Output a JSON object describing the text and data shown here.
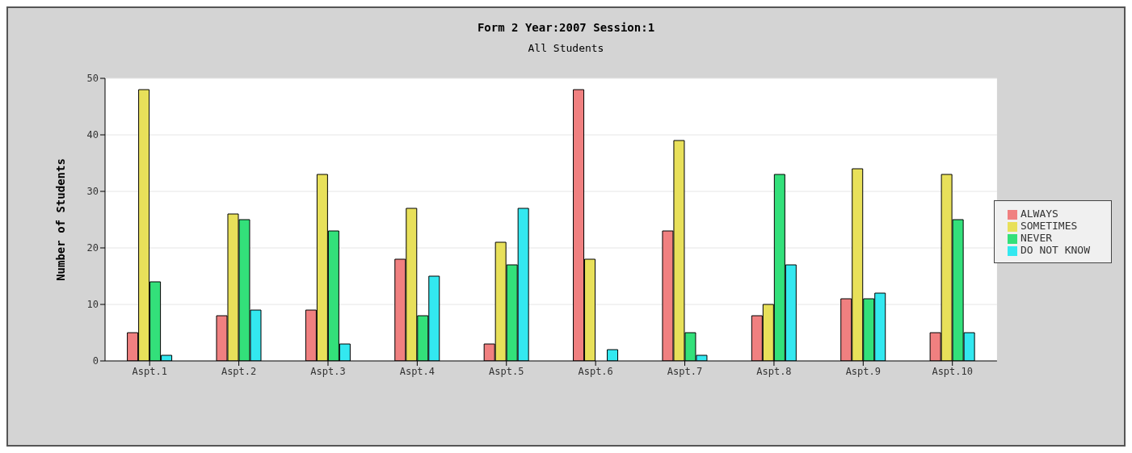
{
  "chart_data": {
    "type": "bar",
    "title": "Form 2 Year:2007 Session:1",
    "subtitle": "All Students",
    "ylabel": "Number of Students",
    "categories": [
      "Aspt.1",
      "Aspt.2",
      "Aspt.3",
      "Aspt.4",
      "Aspt.5",
      "Aspt.6",
      "Aspt.7",
      "Aspt.8",
      "Aspt.9",
      "Aspt.10"
    ],
    "series": [
      {
        "name": "ALWAYS",
        "color": "#f08080",
        "values": [
          5,
          8,
          9,
          18,
          3,
          48,
          23,
          8,
          11,
          5
        ]
      },
      {
        "name": "SOMETIMES",
        "color": "#e8e05a",
        "values": [
          48,
          26,
          33,
          27,
          21,
          18,
          39,
          10,
          34,
          33
        ]
      },
      {
        "name": "NEVER",
        "color": "#33e07a",
        "values": [
          14,
          25,
          23,
          8,
          17,
          0,
          5,
          33,
          11,
          25
        ]
      },
      {
        "name": "DO NOT KNOW",
        "color": "#33e8f0",
        "values": [
          1,
          9,
          3,
          15,
          27,
          2,
          1,
          17,
          12,
          5
        ]
      }
    ],
    "ylim": [
      0,
      50
    ],
    "yticks": [
      0,
      10,
      20,
      30,
      40,
      50
    ],
    "grid": "y",
    "legend": "right"
  }
}
